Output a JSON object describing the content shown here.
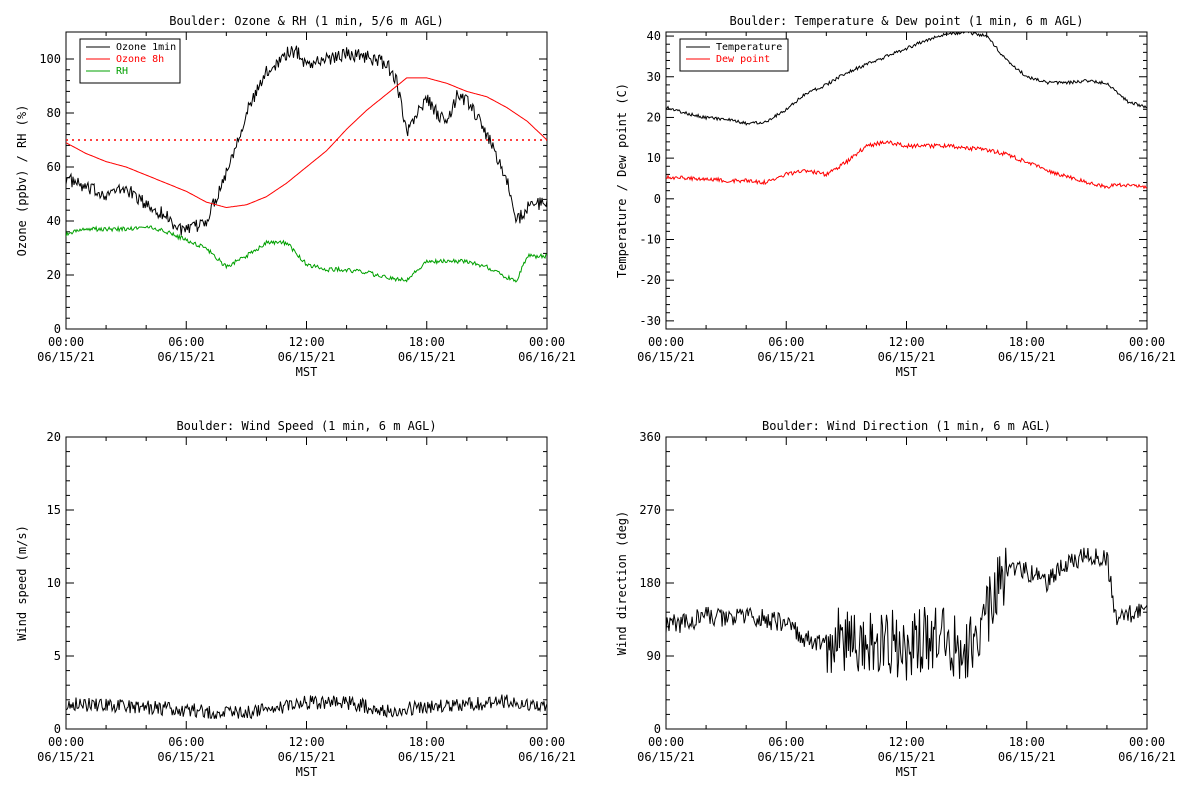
{
  "chart_data": [
    {
      "type": "line",
      "title": "Boulder: Ozone & RH (1 min, 5/6 m AGL)",
      "ylabel": "Ozone (ppbv) / RH (%)",
      "xlabel": "MST",
      "ylim": [
        0,
        110
      ],
      "yticks": [
        0,
        20,
        40,
        60,
        80,
        100
      ],
      "x_tick_labels": [
        [
          "00:00",
          "06/15/21"
        ],
        [
          "06:00",
          "06/15/21"
        ],
        [
          "12:00",
          "06/15/21"
        ],
        [
          "18:00",
          "06/15/21"
        ],
        [
          "00:00",
          "06/16/21"
        ]
      ],
      "legend_position": "top-left",
      "reference_line": {
        "y": 70,
        "style": "dotted",
        "color": "#ff0000"
      },
      "series": [
        {
          "name": "Ozone 1min",
          "color": "#000000",
          "noise": 2.5,
          "x": [
            0,
            1,
            2,
            3,
            4,
            5,
            5.5,
            6,
            6.5,
            7,
            8,
            9,
            10,
            11,
            11.5,
            12,
            13,
            14,
            15,
            16,
            16.5,
            17,
            17.5,
            18,
            18.5,
            19,
            19.5,
            20,
            21,
            22,
            22.5,
            23,
            24
          ],
          "y": [
            56,
            52,
            50,
            52,
            46,
            42,
            38,
            36,
            38,
            40,
            58,
            80,
            95,
            102,
            103,
            98,
            100,
            102,
            101,
            98,
            92,
            72,
            80,
            85,
            80,
            76,
            86,
            85,
            72,
            55,
            40,
            45,
            47
          ]
        },
        {
          "name": "Ozone 8h",
          "color": "#ff0000",
          "noise": 0,
          "x": [
            0,
            1,
            2,
            3,
            4,
            5,
            6,
            7,
            8,
            9,
            10,
            11,
            12,
            13,
            14,
            15,
            16,
            17,
            18,
            19,
            20,
            21,
            22,
            23,
            24
          ],
          "y": [
            69,
            65,
            62,
            60,
            57,
            54,
            51,
            47,
            45,
            46,
            49,
            54,
            60,
            66,
            74,
            81,
            87,
            93,
            93,
            91,
            88,
            86,
            82,
            77,
            70
          ]
        },
        {
          "name": "RH",
          "color": "#00a000",
          "noise": 0.8,
          "x": [
            0,
            1,
            2,
            3,
            4,
            5,
            6,
            7,
            8,
            9,
            10,
            11,
            12,
            13,
            14,
            15,
            16,
            17,
            18,
            19,
            20,
            21,
            22,
            22.5,
            23,
            24
          ],
          "y": [
            35,
            37,
            37,
            37,
            38,
            36,
            33,
            30,
            23,
            27,
            32,
            32,
            24,
            22,
            22,
            21,
            19,
            18,
            25,
            25,
            25,
            23,
            19,
            18,
            27,
            27
          ]
        }
      ]
    },
    {
      "type": "line",
      "title": "Boulder: Temperature & Dew point (1 min, 6 m AGL)",
      "ylabel": "Temperature / Dew point (C)",
      "xlabel": "MST",
      "ylim": [
        -32,
        41
      ],
      "yticks": [
        -30,
        -20,
        -10,
        0,
        10,
        20,
        30,
        40
      ],
      "x_tick_labels": [
        [
          "00:00",
          "06/15/21"
        ],
        [
          "06:00",
          "06/15/21"
        ],
        [
          "12:00",
          "06/15/21"
        ],
        [
          "18:00",
          "06/15/21"
        ],
        [
          "00:00",
          "06/16/21"
        ]
      ],
      "legend_position": "top-left",
      "series": [
        {
          "name": "Temperature",
          "color": "#000000",
          "noise": 0.4,
          "x": [
            0,
            1,
            2,
            3,
            4,
            5,
            6,
            7,
            8,
            9,
            10,
            11,
            12,
            13,
            14,
            15,
            16,
            17,
            18,
            19,
            20,
            21,
            22,
            23,
            24
          ],
          "y": [
            22.5,
            21,
            20,
            19.5,
            18.5,
            19,
            22,
            26,
            28,
            31,
            33,
            35,
            37,
            39,
            40.5,
            41,
            40,
            34,
            30,
            28.5,
            28.5,
            29,
            28.5,
            24,
            22.5
          ]
        },
        {
          "name": "Dew point",
          "color": "#ff0000",
          "noise": 0.5,
          "x": [
            0,
            1,
            2,
            3,
            4,
            5,
            6,
            7,
            8,
            9,
            10,
            11,
            12,
            13,
            14,
            15,
            16,
            17,
            18,
            19,
            20,
            21,
            22,
            23,
            24
          ],
          "y": [
            5.5,
            5,
            5,
            4.5,
            4.5,
            4,
            6,
            7,
            6,
            9,
            13,
            14,
            13,
            13,
            13,
            12.5,
            12,
            11,
            9,
            7,
            5.5,
            4,
            3,
            3.5,
            3
          ]
        }
      ]
    },
    {
      "type": "line",
      "title": "Boulder: Wind Speed (1 min, 6 m AGL)",
      "ylabel": "Wind speed (m/s)",
      "xlabel": "MST",
      "ylim": [
        0,
        20
      ],
      "yticks": [
        0,
        5,
        10,
        15,
        20
      ],
      "x_tick_labels": [
        [
          "00:00",
          "06/15/21"
        ],
        [
          "06:00",
          "06/15/21"
        ],
        [
          "12:00",
          "06/15/21"
        ],
        [
          "18:00",
          "06/15/21"
        ],
        [
          "00:00",
          "06/16/21"
        ]
      ],
      "series": [
        {
          "color": "#000000",
          "noise": 0.5,
          "x": [
            0,
            2,
            4,
            6,
            8,
            10,
            12,
            14,
            16,
            18,
            20,
            22,
            24
          ],
          "y": [
            1.8,
            1.6,
            1.5,
            1.3,
            1.1,
            1.3,
            1.8,
            1.8,
            1.3,
            1.5,
            1.7,
            1.9,
            1.6
          ]
        }
      ]
    },
    {
      "type": "line",
      "title": "Boulder: Wind Direction (1 min, 6 m AGL)",
      "ylabel": "Wind direction (deg)",
      "xlabel": "MST",
      "ylim": [
        0,
        360
      ],
      "yticks": [
        0,
        90,
        180,
        270,
        360
      ],
      "x_tick_labels": [
        [
          "00:00",
          "06/15/21"
        ],
        [
          "06:00",
          "06/15/21"
        ],
        [
          "12:00",
          "06/15/21"
        ],
        [
          "18:00",
          "06/15/21"
        ],
        [
          "00:00",
          "06/16/21"
        ]
      ],
      "series": [
        {
          "color": "#000000",
          "noise": 12,
          "x": [
            0,
            1,
            2,
            3,
            4,
            5,
            6,
            7,
            8,
            9,
            10,
            11,
            12,
            13,
            14,
            15,
            16,
            17,
            18,
            19,
            20,
            21,
            22,
            22.5,
            23,
            24
          ],
          "y": [
            130,
            130,
            140,
            135,
            140,
            135,
            130,
            110,
            105,
            110,
            100,
            110,
            100,
            110,
            110,
            100,
            140,
            200,
            195,
            180,
            205,
            215,
            210,
            130,
            140,
            150
          ]
        }
      ]
    }
  ]
}
